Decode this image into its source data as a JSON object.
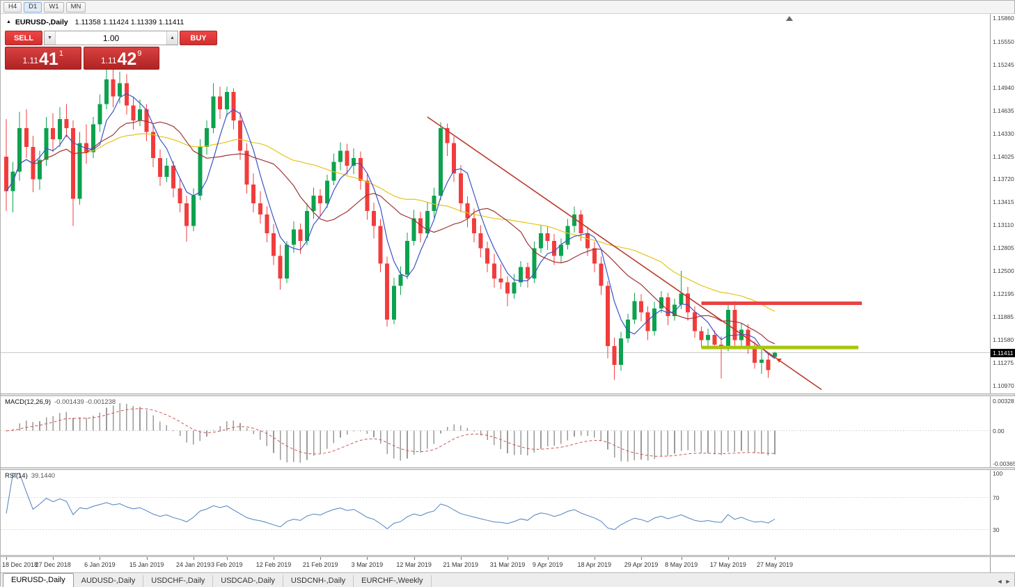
{
  "toolbar": {
    "buttons": [
      "H4",
      "D1",
      "W1",
      "MN"
    ],
    "active": "D1"
  },
  "header": {
    "icon": "▲",
    "symbol": "EURUSD-,Daily",
    "ohlc": "1.11358 1.11424 1.11339 1.11411"
  },
  "trade_panel": {
    "sell_label": "SELL",
    "buy_label": "BUY",
    "volume": "1.00",
    "down_icon": "▼",
    "up_icon": "▲",
    "sell_price": {
      "small": "1.11",
      "big": "41",
      "sup": "1"
    },
    "buy_price": {
      "small": "1.11",
      "big": "42",
      "sup": "9"
    }
  },
  "price_axis": {
    "labels": [
      "1.15860",
      "1.15550",
      "1.15245",
      "1.14940",
      "1.14635",
      "1.14330",
      "1.14025",
      "1.13720",
      "1.13415",
      "1.13110",
      "1.12805",
      "1.12500",
      "1.12195",
      "1.11885",
      "1.11580",
      "1.11275",
      "1.10970"
    ],
    "current": "1.11411"
  },
  "macd_panel": {
    "label": "MACD(12,26,9)",
    "values": "-0.001439 -0.001238",
    "axis": [
      "0.00328",
      "0.00",
      "-0.00365"
    ]
  },
  "rsi_panel": {
    "label": "RSI(14)",
    "value": "39.1440",
    "axis": [
      "100",
      "70",
      "30"
    ]
  },
  "time_axis": {
    "labels": [
      {
        "text": "18 Dec 2018",
        "bar": 0
      },
      {
        "text": "27 Dec 2018",
        "bar": 7
      },
      {
        "text": "6 Jan 2019",
        "bar": 14
      },
      {
        "text": "15 Jan 2019",
        "bar": 21
      },
      {
        "text": "24 Jan 2019",
        "bar": 28
      },
      {
        "text": "3 Feb 2019",
        "bar": 33
      },
      {
        "text": "12 Feb 2019",
        "bar": 40
      },
      {
        "text": "21 Feb 2019",
        "bar": 47
      },
      {
        "text": "3 Mar 2019",
        "bar": 54
      },
      {
        "text": "12 Mar 2019",
        "bar": 61
      },
      {
        "text": "21 Mar 2019",
        "bar": 68
      },
      {
        "text": "31 Mar 2019",
        "bar": 75
      },
      {
        "text": "9 Apr 2019",
        "bar": 81
      },
      {
        "text": "18 Apr 2019",
        "bar": 88
      },
      {
        "text": "29 Apr 2019",
        "bar": 95
      },
      {
        "text": "8 May 2019",
        "bar": 101
      },
      {
        "text": "17 May 2019",
        "bar": 108
      },
      {
        "text": "27 May 2019",
        "bar": 115
      }
    ]
  },
  "tabs": {
    "items": [
      {
        "label": "EURUSD-,Daily",
        "active": true
      },
      {
        "label": "AUDUSD-,Daily",
        "active": false
      },
      {
        "label": "USDCHF-,Daily",
        "active": false
      },
      {
        "label": "USDCAD-,Daily",
        "active": false
      },
      {
        "label": "USDCNH-,Daily",
        "active": false
      },
      {
        "label": "EURCHF-,Weekly",
        "active": false
      }
    ],
    "scroll_left": "◄",
    "scroll_right": "►"
  },
  "chart_data": {
    "type": "candlestick",
    "symbol": "EURUSD-",
    "timeframe": "Daily",
    "price_range": {
      "top": 1.1592,
      "bottom": 1.1087
    },
    "colors": {
      "up": "#0ca24e",
      "down": "#f23c3c",
      "macd_histogram": "#9a9a9a",
      "macd_signal": "#cf5454",
      "rsi_line": "#4f81bd",
      "current_price_line": "#c9c9c9"
    },
    "candles": [
      [
        1.1402,
        1.1452,
        1.133,
        1.1356
      ],
      [
        1.1356,
        1.1395,
        1.1328,
        1.1382
      ],
      [
        1.1382,
        1.1462,
        1.137,
        1.144
      ],
      [
        1.144,
        1.1465,
        1.14,
        1.1415
      ],
      [
        1.1415,
        1.143,
        1.1355,
        1.1372
      ],
      [
        1.1372,
        1.141,
        1.1358,
        1.1398
      ],
      [
        1.1398,
        1.1455,
        1.139,
        1.144
      ],
      [
        1.144,
        1.146,
        1.1408,
        1.1425
      ],
      [
        1.1425,
        1.1468,
        1.1415,
        1.1452
      ],
      [
        1.1452,
        1.1472,
        1.1428,
        1.144
      ],
      [
        1.144,
        1.145,
        1.131,
        1.1346
      ],
      [
        1.1346,
        1.1435,
        1.1338,
        1.142
      ],
      [
        1.142,
        1.1445,
        1.1393,
        1.1408
      ],
      [
        1.1408,
        1.1455,
        1.14,
        1.1445
      ],
      [
        1.1445,
        1.1485,
        1.1435,
        1.1472
      ],
      [
        1.1472,
        1.152,
        1.1465,
        1.1505
      ],
      [
        1.1505,
        1.1518,
        1.1468,
        1.1482
      ],
      [
        1.1482,
        1.1515,
        1.1473,
        1.15
      ],
      [
        1.15,
        1.1512,
        1.1458,
        1.147
      ],
      [
        1.147,
        1.1482,
        1.1438,
        1.145
      ],
      [
        1.145,
        1.1478,
        1.1443,
        1.1465
      ],
      [
        1.1465,
        1.1472,
        1.1423,
        1.1435
      ],
      [
        1.1435,
        1.1445,
        1.1388,
        1.14
      ],
      [
        1.14,
        1.1412,
        1.1363,
        1.1375
      ],
      [
        1.1375,
        1.14,
        1.1368,
        1.139
      ],
      [
        1.139,
        1.1396,
        1.1348,
        1.136
      ],
      [
        1.136,
        1.1372,
        1.1328,
        1.134
      ],
      [
        1.134,
        1.135,
        1.1289,
        1.131
      ],
      [
        1.131,
        1.136,
        1.1303,
        1.135
      ],
      [
        1.135,
        1.1425,
        1.1344,
        1.1415
      ],
      [
        1.1415,
        1.145,
        1.1405,
        1.144
      ],
      [
        1.144,
        1.15,
        1.1433,
        1.1482
      ],
      [
        1.1482,
        1.1495,
        1.1452,
        1.1465
      ],
      [
        1.1465,
        1.1495,
        1.1456,
        1.1488
      ],
      [
        1.1488,
        1.1493,
        1.1438,
        1.145
      ],
      [
        1.145,
        1.1462,
        1.1398,
        1.141
      ],
      [
        1.141,
        1.142,
        1.1353,
        1.1365
      ],
      [
        1.1365,
        1.138,
        1.1328,
        1.134
      ],
      [
        1.134,
        1.1356,
        1.1313,
        1.1325
      ],
      [
        1.1325,
        1.1336,
        1.1288,
        1.13
      ],
      [
        1.13,
        1.1312,
        1.1258,
        1.127
      ],
      [
        1.127,
        1.1285,
        1.1225,
        1.124
      ],
      [
        1.124,
        1.129,
        1.1234,
        1.1285
      ],
      [
        1.1285,
        1.1316,
        1.1274,
        1.1305
      ],
      [
        1.1305,
        1.1313,
        1.1273,
        1.129
      ],
      [
        1.129,
        1.134,
        1.1284,
        1.133
      ],
      [
        1.133,
        1.1361,
        1.1319,
        1.135
      ],
      [
        1.135,
        1.1359,
        1.1323,
        1.134
      ],
      [
        1.134,
        1.1378,
        1.1334,
        1.137
      ],
      [
        1.137,
        1.1406,
        1.1364,
        1.1395
      ],
      [
        1.1395,
        1.1421,
        1.1384,
        1.141
      ],
      [
        1.141,
        1.1419,
        1.1378,
        1.139
      ],
      [
        1.139,
        1.1413,
        1.1379,
        1.14
      ],
      [
        1.14,
        1.1409,
        1.1358,
        1.137
      ],
      [
        1.137,
        1.1379,
        1.1318,
        1.133
      ],
      [
        1.133,
        1.1341,
        1.1293,
        1.131
      ],
      [
        1.131,
        1.1319,
        1.1248,
        1.126
      ],
      [
        1.126,
        1.1269,
        1.1176,
        1.1185
      ],
      [
        1.1185,
        1.1241,
        1.1179,
        1.123
      ],
      [
        1.123,
        1.1256,
        1.1218,
        1.1245
      ],
      [
        1.1245,
        1.1301,
        1.1239,
        1.129
      ],
      [
        1.129,
        1.1331,
        1.1284,
        1.132
      ],
      [
        1.132,
        1.1329,
        1.1288,
        1.13
      ],
      [
        1.13,
        1.1341,
        1.1294,
        1.133
      ],
      [
        1.133,
        1.1361,
        1.1321,
        1.135
      ],
      [
        1.135,
        1.1448,
        1.1344,
        1.144
      ],
      [
        1.144,
        1.1446,
        1.1403,
        1.142
      ],
      [
        1.142,
        1.1429,
        1.1368,
        1.138
      ],
      [
        1.138,
        1.1391,
        1.1328,
        1.134
      ],
      [
        1.134,
        1.1349,
        1.1308,
        1.132
      ],
      [
        1.132,
        1.1333,
        1.1288,
        1.13
      ],
      [
        1.13,
        1.1311,
        1.1268,
        1.128
      ],
      [
        1.128,
        1.1289,
        1.1248,
        1.126
      ],
      [
        1.126,
        1.1273,
        1.1228,
        1.124
      ],
      [
        1.124,
        1.1259,
        1.1226,
        1.1235
      ],
      [
        1.1235,
        1.1243,
        1.1203,
        1.122
      ],
      [
        1.122,
        1.1246,
        1.1213,
        1.1235
      ],
      [
        1.1235,
        1.1263,
        1.1229,
        1.1255
      ],
      [
        1.1255,
        1.1261,
        1.1228,
        1.124
      ],
      [
        1.124,
        1.1289,
        1.1234,
        1.128
      ],
      [
        1.128,
        1.1311,
        1.1274,
        1.13
      ],
      [
        1.13,
        1.1309,
        1.1278,
        1.129
      ],
      [
        1.129,
        1.1299,
        1.1258,
        1.127
      ],
      [
        1.127,
        1.1293,
        1.1261,
        1.1285
      ],
      [
        1.1285,
        1.1319,
        1.1279,
        1.131
      ],
      [
        1.131,
        1.1336,
        1.1301,
        1.1325
      ],
      [
        1.1325,
        1.1331,
        1.129,
        1.13
      ],
      [
        1.13,
        1.1309,
        1.127,
        1.128
      ],
      [
        1.128,
        1.1289,
        1.1248,
        1.126
      ],
      [
        1.126,
        1.1269,
        1.1218,
        1.123
      ],
      [
        1.123,
        1.1236,
        1.1134,
        1.115
      ],
      [
        1.115,
        1.1161,
        1.1105,
        1.1125
      ],
      [
        1.1125,
        1.1169,
        1.1117,
        1.116
      ],
      [
        1.116,
        1.1193,
        1.1154,
        1.1185
      ],
      [
        1.1185,
        1.1221,
        1.1179,
        1.121
      ],
      [
        1.121,
        1.1219,
        1.1183,
        1.1195
      ],
      [
        1.1195,
        1.1203,
        1.1158,
        1.117
      ],
      [
        1.117,
        1.1209,
        1.1164,
        1.12
      ],
      [
        1.12,
        1.1223,
        1.1194,
        1.1215
      ],
      [
        1.1215,
        1.1221,
        1.1178,
        1.119
      ],
      [
        1.119,
        1.1213,
        1.1184,
        1.1205
      ],
      [
        1.1205,
        1.125,
        1.1199,
        1.122
      ],
      [
        1.122,
        1.1229,
        1.1184,
        1.1195
      ],
      [
        1.1195,
        1.1203,
        1.1161,
        1.117
      ],
      [
        1.117,
        1.1176,
        1.1148,
        1.1158
      ],
      [
        1.1158,
        1.1173,
        1.1146,
        1.1165
      ],
      [
        1.1165,
        1.1171,
        1.1148,
        1.1152
      ],
      [
        1.1152,
        1.1163,
        1.1107,
        1.1148
      ],
      [
        1.1148,
        1.1208,
        1.1143,
        1.1198
      ],
      [
        1.1198,
        1.121,
        1.115,
        1.1158
      ],
      [
        1.1158,
        1.1181,
        1.115,
        1.1172
      ],
      [
        1.1172,
        1.1179,
        1.114,
        1.1148
      ],
      [
        1.1148,
        1.1156,
        1.112,
        1.1128
      ],
      [
        1.1128,
        1.1146,
        1.1113,
        1.1132
      ],
      [
        1.1132,
        1.1141,
        1.1108,
        1.1118
      ],
      [
        1.11358,
        1.11424,
        1.11339,
        1.11411
      ]
    ],
    "overlays": {
      "ma_fast": {
        "period": 5,
        "color": "#3a53c5"
      },
      "ma_mid": {
        "period": 13,
        "color": "#9e3434"
      },
      "ma_slow": {
        "period": 34,
        "color": "#e6c417"
      },
      "trendline": {
        "from_bar": 63,
        "from_price": 1.1455,
        "to_bar": 122,
        "to_price": 1.1092,
        "color": "#bb3b2e"
      },
      "resistance": {
        "price": 1.1207,
        "from_bar": 104,
        "to_bar": 128,
        "color": "#e84343"
      },
      "support": {
        "price": 1.1148,
        "from_bar": 104,
        "to_bar": 127.5,
        "color": "#a8c50f"
      },
      "current_price": 1.11411,
      "sell_marker": {
        "bar": 115,
        "price": 1.1128
      }
    },
    "macd": {
      "fast": 12,
      "slow": 26,
      "signal": 9,
      "range": {
        "top": 0.0038,
        "bottom": -0.004
      }
    },
    "rsi": {
      "period": 14,
      "levels": [
        70,
        30
      ],
      "range": [
        0,
        100
      ]
    }
  }
}
